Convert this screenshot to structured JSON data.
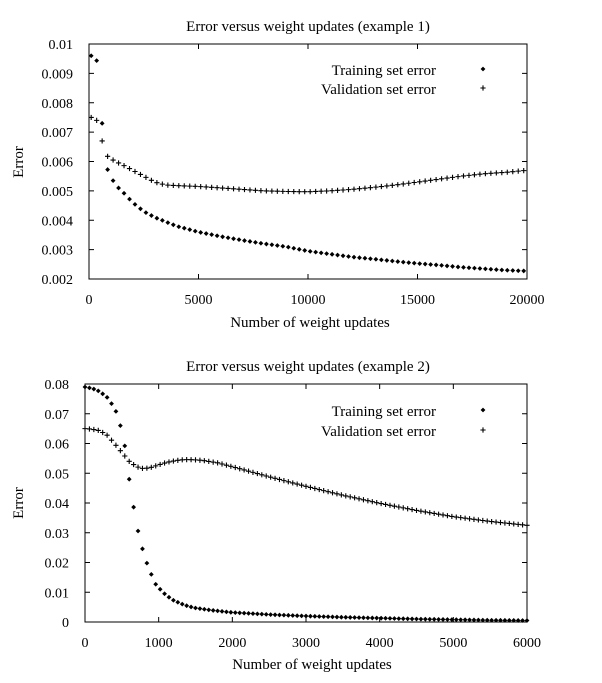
{
  "chart_data": [
    {
      "type": "scatter",
      "title": "Error versus weight updates (example 1)",
      "xlabel": "Number of weight updates",
      "ylabel": "Error",
      "xlim": [
        0,
        20000
      ],
      "ylim": [
        0.002,
        0.01
      ],
      "xticks": [
        "0",
        "5000",
        "10000",
        "15000",
        "20000"
      ],
      "yticks": [
        "0.002",
        "0.003",
        "0.004",
        "0.005",
        "0.006",
        "0.007",
        "0.008",
        "0.009",
        "0.01"
      ],
      "legend_position": "top-right",
      "grid": false,
      "series": [
        {
          "name": "Training set error",
          "marker": "diamond",
          "x": [
            100,
            250,
            400,
            500,
            600,
            700,
            800,
            1000,
            1200,
            1500,
            2000,
            2500,
            3000,
            4000,
            5000,
            6000,
            7000,
            8000,
            9000,
            10000,
            11000,
            12000,
            13000,
            14000,
            15000,
            16000,
            17000,
            18000,
            19000,
            20000
          ],
          "values": [
            0.0096,
            0.0095,
            0.0094,
            0.0088,
            0.0073,
            0.0064,
            0.0058,
            0.0055,
            0.0052,
            0.005,
            0.0046,
            0.0043,
            0.0041,
            0.0038,
            0.0036,
            0.00345,
            0.00332,
            0.0032,
            0.0031,
            0.00295,
            0.00285,
            0.00275,
            0.00268,
            0.0026,
            0.00253,
            0.00247,
            0.0024,
            0.00235,
            0.0023,
            0.00227
          ]
        },
        {
          "name": "Validation set error",
          "marker": "plus",
          "x": [
            100,
            200,
            350,
            500,
            600,
            700,
            800,
            1000,
            1200,
            1500,
            2000,
            2500,
            3000,
            3500,
            4000,
            5000,
            6000,
            7000,
            8000,
            9000,
            10000,
            11000,
            12000,
            13000,
            14000,
            15000,
            16000,
            17000,
            18000,
            19000,
            20000
          ],
          "values": [
            0.0075,
            0.0075,
            0.0074,
            0.0073,
            0.0067,
            0.0063,
            0.0062,
            0.0061,
            0.006,
            0.0059,
            0.0057,
            0.0055,
            0.0053,
            0.0052,
            0.00518,
            0.00515,
            0.0051,
            0.00505,
            0.005,
            0.00498,
            0.00497,
            0.005,
            0.00505,
            0.00512,
            0.0052,
            0.0053,
            0.0054,
            0.0055,
            0.00558,
            0.00563,
            0.0057
          ]
        }
      ]
    },
    {
      "type": "scatter",
      "title": "Error versus weight updates (example 2)",
      "xlabel": "Number of weight updates",
      "ylabel": "Error",
      "xlim": [
        0,
        6000
      ],
      "ylim": [
        0,
        0.08
      ],
      "xticks": [
        "0",
        "1000",
        "2000",
        "3000",
        "4000",
        "5000",
        "6000"
      ],
      "yticks": [
        "0",
        "0.01",
        "0.02",
        "0.03",
        "0.04",
        "0.05",
        "0.06",
        "0.07",
        "0.08"
      ],
      "legend_position": "top-right",
      "grid": false,
      "series": [
        {
          "name": "Training set error",
          "marker": "diamond",
          "x": [
            0,
            100,
            200,
            300,
            400,
            450,
            500,
            550,
            600,
            650,
            700,
            750,
            800,
            850,
            900,
            950,
            1000,
            1100,
            1200,
            1300,
            1400,
            1500,
            1700,
            2000,
            2500,
            3000,
            3500,
            4000,
            4500,
            5000,
            5500,
            6000
          ],
          "values": [
            0.079,
            0.0785,
            0.0775,
            0.0755,
            0.072,
            0.069,
            0.064,
            0.058,
            0.048,
            0.04,
            0.033,
            0.027,
            0.023,
            0.019,
            0.016,
            0.013,
            0.0115,
            0.009,
            0.0073,
            0.0062,
            0.0053,
            0.0047,
            0.004,
            0.0032,
            0.0025,
            0.002,
            0.0016,
            0.0013,
            0.001,
            0.0008,
            0.0006,
            0.0005
          ]
        },
        {
          "name": "Validation set error",
          "marker": "plus",
          "x": [
            0,
            100,
            200,
            300,
            400,
            500,
            600,
            700,
            800,
            900,
            1000,
            1100,
            1200,
            1300,
            1400,
            1500,
            1600,
            1800,
            2000,
            2500,
            3000,
            3500,
            4000,
            4500,
            5000,
            5500,
            6000
          ],
          "values": [
            0.065,
            0.0648,
            0.0643,
            0.0628,
            0.06,
            0.057,
            0.054,
            0.0522,
            0.0515,
            0.052,
            0.0528,
            0.0536,
            0.0541,
            0.0545,
            0.0546,
            0.0545,
            0.0543,
            0.0535,
            0.0522,
            0.0488,
            0.0456,
            0.0426,
            0.0399,
            0.0375,
            0.0354,
            0.0338,
            0.0325
          ]
        }
      ]
    }
  ]
}
